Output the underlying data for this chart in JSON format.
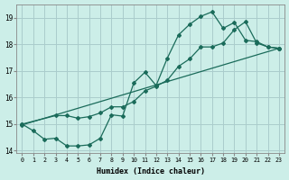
{
  "xlabel": "Humidex (Indice chaleur)",
  "background_color": "#cceee8",
  "grid_color": "#aacccc",
  "line_color": "#1a6b5a",
  "xlim": [
    -0.5,
    23.5
  ],
  "ylim": [
    13.9,
    19.5
  ],
  "yticks": [
    14,
    15,
    16,
    17,
    18,
    19
  ],
  "xticks": [
    0,
    1,
    2,
    3,
    4,
    5,
    6,
    7,
    8,
    9,
    10,
    11,
    12,
    13,
    14,
    15,
    16,
    17,
    18,
    19,
    20,
    21,
    22,
    23
  ],
  "curve_jagged_x": [
    0,
    1,
    2,
    3,
    4,
    5,
    6,
    7,
    8,
    9,
    10,
    11,
    12,
    13,
    14,
    15,
    16,
    17,
    18,
    19,
    20,
    21,
    22,
    23
  ],
  "curve_jagged_y": [
    15.0,
    14.75,
    14.43,
    14.47,
    14.18,
    14.18,
    14.22,
    14.47,
    15.35,
    15.3,
    16.55,
    16.95,
    16.45,
    17.48,
    18.35,
    18.75,
    19.05,
    19.22,
    18.6,
    18.82,
    18.15,
    18.1,
    17.9,
    17.85
  ],
  "curve_smooth_x": [
    0,
    3,
    4,
    5,
    6,
    7,
    8,
    9,
    10,
    11,
    12,
    13,
    14,
    15,
    16,
    17,
    18,
    19,
    20,
    21,
    22,
    23
  ],
  "curve_smooth_y": [
    15.0,
    15.32,
    15.32,
    15.22,
    15.28,
    15.42,
    15.65,
    15.65,
    15.85,
    16.25,
    16.42,
    16.65,
    17.17,
    17.45,
    17.9,
    17.9,
    18.05,
    18.55,
    18.85,
    18.05,
    17.9,
    17.85
  ],
  "line_x": [
    0,
    23
  ],
  "line_y": [
    14.97,
    17.85
  ]
}
